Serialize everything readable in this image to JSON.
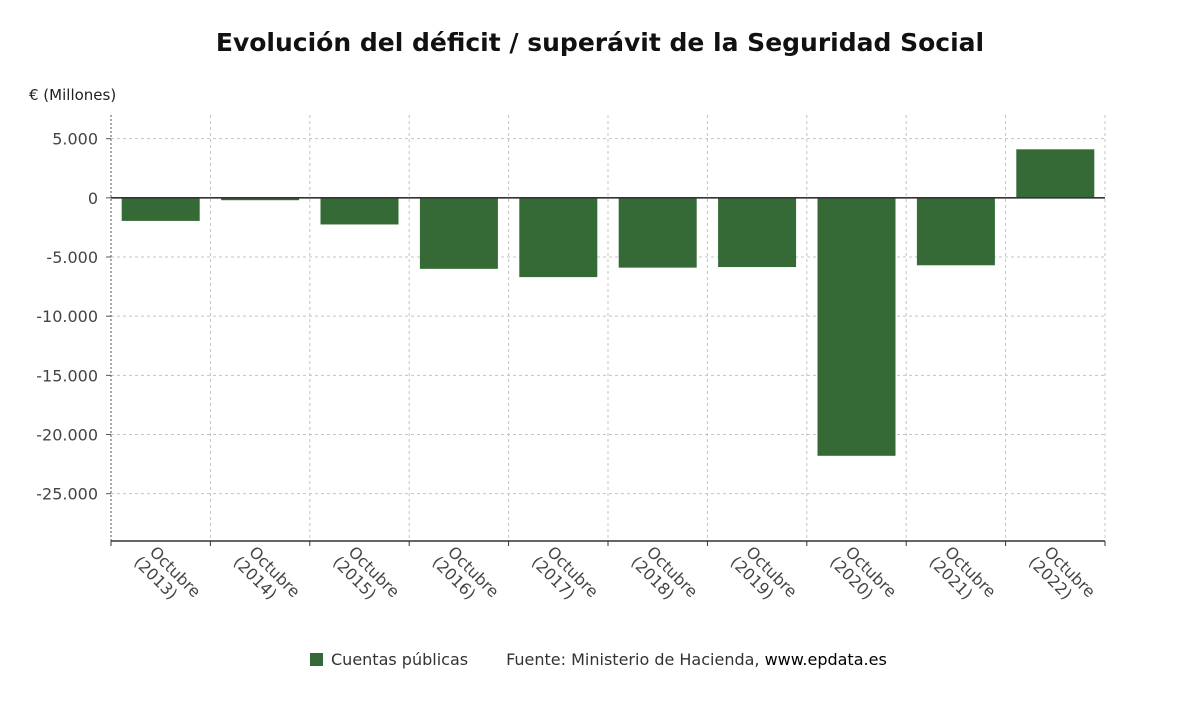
{
  "chart_data": {
    "type": "bar",
    "title": "Evolución del déficit / superávit de la Seguridad Social",
    "ylabel": "€ (Millones)",
    "xlabel": "",
    "categories": [
      "Octubre (2013)",
      "Octubre (2014)",
      "Octubre (2015)",
      "Octubre (2016)",
      "Octubre (2017)",
      "Octubre (2018)",
      "Octubre (2019)",
      "Octubre (2020)",
      "Octubre (2021)",
      "Octubre (2022)"
    ],
    "category_lines": [
      [
        "Octubre",
        "(2013)"
      ],
      [
        "Octubre",
        "(2014)"
      ],
      [
        "Octubre",
        "(2015)"
      ],
      [
        "Octubre",
        "(2016)"
      ],
      [
        "Octubre",
        "(2017)"
      ],
      [
        "Octubre",
        "(2018)"
      ],
      [
        "Octubre",
        "(2019)"
      ],
      [
        "Octubre",
        "(2020)"
      ],
      [
        "Octubre",
        "(2021)"
      ],
      [
        "Octubre",
        "(2022)"
      ]
    ],
    "series": [
      {
        "name": "Cuentas públicas",
        "values": [
          -1950,
          -200,
          -2250,
          -6000,
          -6700,
          -5900,
          -5850,
          -21800,
          -5700,
          4100
        ]
      }
    ],
    "ylim": [
      -29000,
      7000
    ],
    "yticks": [
      5000,
      0,
      -5000,
      -10000,
      -15000,
      -20000,
      -25000
    ],
    "ytick_labels": [
      "5.000",
      "0",
      "-5.000",
      "-10.000",
      "-15.000",
      "-20.000",
      "-25.000"
    ],
    "grid": true,
    "legend_position": "bottom",
    "color": "#356a37"
  },
  "legend": {
    "label": "Cuentas públicas"
  },
  "source": {
    "prefix": "Fuente: Ministerio de Hacienda, ",
    "site": "www.epdata.es"
  }
}
